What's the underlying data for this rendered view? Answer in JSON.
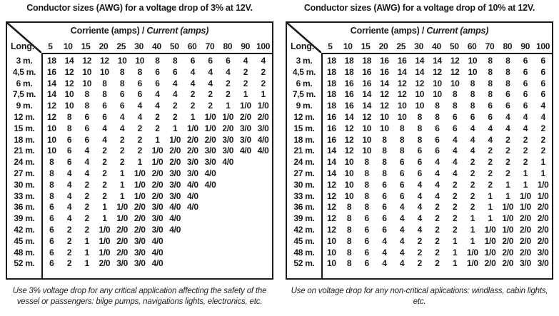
{
  "page": {
    "background": "#ffffff",
    "text_color": "#1a1a1a",
    "line_color": "#1a1a1a"
  },
  "tables": [
    {
      "title": "Conductor sizes (AWG) for a voltage drop of 3% at 12V.",
      "corner_label": "Long.",
      "header": "Corriente (amps) /",
      "header_italic": "Current (amps)",
      "columns": [
        "5",
        "10",
        "15",
        "20",
        "25",
        "30",
        "40",
        "50",
        "60",
        "70",
        "80",
        "90",
        "100"
      ],
      "rows": [
        {
          "label": "3 m.",
          "values": [
            "18",
            "14",
            "12",
            "12",
            "10",
            "10",
            "8",
            "8",
            "6",
            "6",
            "6",
            "4",
            "4"
          ]
        },
        {
          "label": "4,5 m.",
          "values": [
            "16",
            "12",
            "10",
            "10",
            "8",
            "8",
            "6",
            "6",
            "4",
            "4",
            "4",
            "2",
            "2"
          ]
        },
        {
          "label": "6 m.",
          "values": [
            "14",
            "12",
            "10",
            "8",
            "8",
            "6",
            "6",
            "4",
            "4",
            "4",
            "2",
            "2",
            "2"
          ]
        },
        {
          "label": "7,5 m.",
          "values": [
            "14",
            "10",
            "8",
            "8",
            "6",
            "6",
            "4",
            "4",
            "2",
            "2",
            "2",
            "1",
            "1"
          ]
        },
        {
          "label": "9 m.",
          "values": [
            "12",
            "10",
            "8",
            "6",
            "6",
            "4",
            "4",
            "2",
            "2",
            "2",
            "1",
            "1/0",
            "1/0"
          ]
        },
        {
          "label": "12 m.",
          "values": [
            "12",
            "8",
            "6",
            "6",
            "4",
            "4",
            "2",
            "2",
            "1",
            "1/0",
            "1/0",
            "2/0",
            "2/0"
          ]
        },
        {
          "label": "15 m.",
          "values": [
            "10",
            "8",
            "6",
            "4",
            "4",
            "2",
            "2",
            "1",
            "1/0",
            "1/0",
            "2/0",
            "3/0",
            "3/0"
          ]
        },
        {
          "label": "18 m.",
          "values": [
            "10",
            "6",
            "6",
            "4",
            "2",
            "2",
            "1",
            "1/0",
            "2/0",
            "2/0",
            "3/0",
            "3/0",
            "4/0"
          ]
        },
        {
          "label": "21 m.",
          "values": [
            "10",
            "6",
            "4",
            "2",
            "2",
            "2",
            "1/0",
            "2/0",
            "2/0",
            "3/0",
            "3/0",
            "4/0",
            "4/0"
          ]
        },
        {
          "label": "24 m.",
          "values": [
            "8",
            "6",
            "4",
            "2",
            "2",
            "1",
            "1/0",
            "2/0",
            "3/0",
            "3/0",
            "4/0",
            "",
            ""
          ]
        },
        {
          "label": "27 m.",
          "values": [
            "8",
            "4",
            "4",
            "2",
            "1",
            "1/0",
            "2/0",
            "3/0",
            "3/0",
            "4/0",
            "",
            "",
            ""
          ]
        },
        {
          "label": "30 m.",
          "values": [
            "8",
            "4",
            "2",
            "2",
            "1",
            "1/0",
            "2/0",
            "3/0",
            "4/0",
            "4/0",
            "",
            "",
            ""
          ]
        },
        {
          "label": "33 m.",
          "values": [
            "8",
            "4",
            "2",
            "2",
            "1",
            "1/0",
            "2/0",
            "3/0",
            "4/0",
            "",
            "",
            "",
            ""
          ]
        },
        {
          "label": "36 m.",
          "values": [
            "6",
            "4",
            "2",
            "1",
            "1/0",
            "2/0",
            "3/0",
            "4/0",
            "4/0",
            "",
            "",
            "",
            ""
          ]
        },
        {
          "label": "39 m.",
          "values": [
            "6",
            "4",
            "2",
            "1",
            "1/0",
            "2/0",
            "3/0",
            "4/0",
            "",
            "",
            "",
            "",
            ""
          ]
        },
        {
          "label": "42 m.",
          "values": [
            "6",
            "2",
            "2",
            "1/0",
            "2/0",
            "2/0",
            "3/0",
            "4/0",
            "",
            "",
            "",
            "",
            ""
          ]
        },
        {
          "label": "45 m.",
          "values": [
            "6",
            "2",
            "1",
            "1/0",
            "2/0",
            "3/0",
            "4/0",
            "",
            "",
            "",
            "",
            "",
            ""
          ]
        },
        {
          "label": "48 m.",
          "values": [
            "6",
            "2",
            "1",
            "1/0",
            "2/0",
            "3/0",
            "4/0",
            "",
            "",
            "",
            "",
            "",
            ""
          ]
        },
        {
          "label": "52 m.",
          "values": [
            "6",
            "2",
            "1",
            "2/0",
            "3/0",
            "3/0",
            "4/0",
            "",
            "",
            "",
            "",
            "",
            ""
          ]
        }
      ],
      "footnote": "Use 3% voltage drop for any critical application affecting the safety of the vessel or passengers: bilge pumps, navigations lights, electronics, etc."
    },
    {
      "title": "Conductor sizes (AWG) for a voltage drop of 10% at 12V.",
      "corner_label": "Long.",
      "header": "Corriente (amps) /",
      "header_italic": "Current (amps)",
      "columns": [
        "5",
        "10",
        "15",
        "20",
        "25",
        "30",
        "40",
        "50",
        "60",
        "70",
        "80",
        "90",
        "100"
      ],
      "rows": [
        {
          "label": "3 m.",
          "values": [
            "18",
            "18",
            "18",
            "16",
            "16",
            "14",
            "14",
            "12",
            "10",
            "8",
            "8",
            "6",
            "6"
          ]
        },
        {
          "label": "4,5 m.",
          "values": [
            "18",
            "18",
            "16",
            "16",
            "14",
            "14",
            "12",
            "12",
            "10",
            "8",
            "8",
            "6",
            "6"
          ]
        },
        {
          "label": "6 m.",
          "values": [
            "18",
            "16",
            "16",
            "14",
            "12",
            "12",
            "10",
            "10",
            "8",
            "8",
            "8",
            "6",
            "6"
          ]
        },
        {
          "label": "7,5 m.",
          "values": [
            "18",
            "16",
            "14",
            "12",
            "12",
            "10",
            "10",
            "8",
            "8",
            "8",
            "6",
            "6",
            "6"
          ]
        },
        {
          "label": "9 m.",
          "values": [
            "18",
            "16",
            "14",
            "12",
            "10",
            "10",
            "8",
            "8",
            "8",
            "6",
            "6",
            "6",
            "4"
          ]
        },
        {
          "label": "12 m.",
          "values": [
            "16",
            "14",
            "12",
            "10",
            "10",
            "8",
            "8",
            "6",
            "6",
            "6",
            "4",
            "4",
            "4"
          ]
        },
        {
          "label": "15 m.",
          "values": [
            "16",
            "12",
            "10",
            "10",
            "8",
            "8",
            "6",
            "6",
            "4",
            "4",
            "4",
            "4",
            "2"
          ]
        },
        {
          "label": "18 m.",
          "values": [
            "16",
            "12",
            "10",
            "8",
            "8",
            "8",
            "6",
            "4",
            "4",
            "4",
            "2",
            "2",
            "2"
          ]
        },
        {
          "label": "21 m.",
          "values": [
            "14",
            "12",
            "10",
            "8",
            "8",
            "6",
            "6",
            "4",
            "4",
            "2",
            "2",
            "2",
            "2"
          ]
        },
        {
          "label": "24 m.",
          "values": [
            "14",
            "10",
            "8",
            "8",
            "6",
            "6",
            "4",
            "4",
            "2",
            "2",
            "2",
            "2",
            "1"
          ]
        },
        {
          "label": "27 m.",
          "values": [
            "14",
            "10",
            "8",
            "8",
            "6",
            "6",
            "4",
            "4",
            "2",
            "2",
            "2",
            "1",
            "1"
          ]
        },
        {
          "label": "30 m.",
          "values": [
            "12",
            "10",
            "8",
            "6",
            "6",
            "4",
            "4",
            "2",
            "2",
            "2",
            "1",
            "1",
            "1/0"
          ]
        },
        {
          "label": "33 m.",
          "values": [
            "12",
            "10",
            "8",
            "6",
            "6",
            "4",
            "4",
            "2",
            "2",
            "1",
            "1",
            "1/0",
            "1/0"
          ]
        },
        {
          "label": "36 m.",
          "values": [
            "12",
            "8",
            "8",
            "6",
            "4",
            "4",
            "2",
            "2",
            "2",
            "1",
            "1/0",
            "1/0",
            "2/0"
          ]
        },
        {
          "label": "39 m.",
          "values": [
            "12",
            "8",
            "6",
            "6",
            "4",
            "4",
            "2",
            "2",
            "1",
            "1",
            "1/0",
            "2/0",
            "2/0"
          ]
        },
        {
          "label": "42 m.",
          "values": [
            "12",
            "8",
            "6",
            "6",
            "4",
            "4",
            "2",
            "2",
            "1",
            "1/0",
            "1/0",
            "2/0",
            "2/0"
          ]
        },
        {
          "label": "45 m.",
          "values": [
            "10",
            "8",
            "6",
            "4",
            "4",
            "2",
            "2",
            "1",
            "1",
            "1/0",
            "2/0",
            "2/0",
            "2/0"
          ]
        },
        {
          "label": "48 m.",
          "values": [
            "10",
            "8",
            "6",
            "4",
            "4",
            "2",
            "2",
            "1",
            "1/0",
            "1/0",
            "2/0",
            "2/0",
            "3/0"
          ]
        },
        {
          "label": "52 m.",
          "values": [
            "10",
            "8",
            "6",
            "4",
            "4",
            "2",
            "2",
            "1",
            "1/0",
            "2/0",
            "2/0",
            "3/0",
            "3/0"
          ]
        }
      ],
      "footnote": "Use on voltage drop for any non-critical aplications: windlass, cabin lights, etc."
    }
  ]
}
